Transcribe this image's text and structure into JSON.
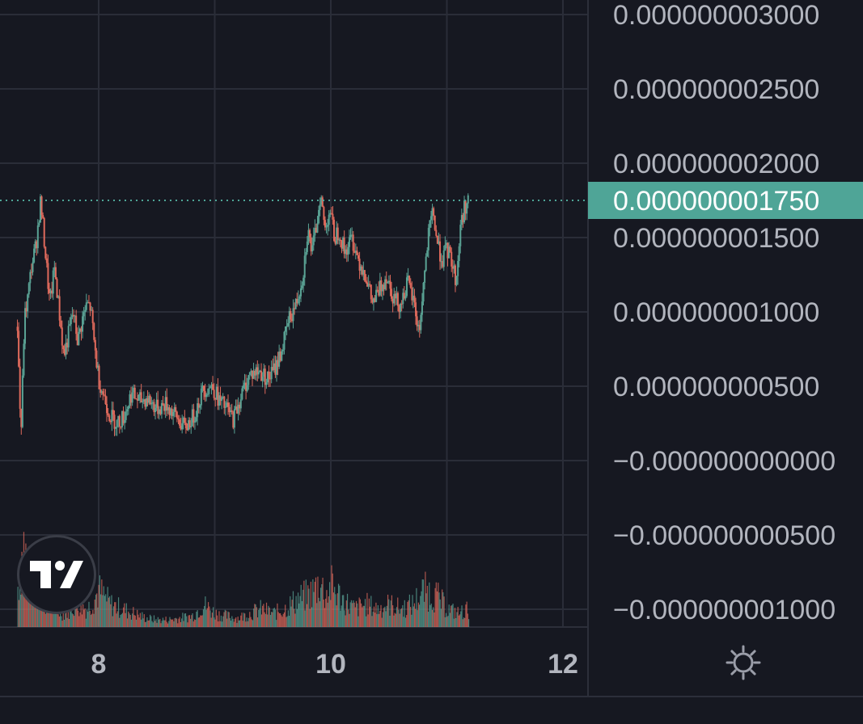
{
  "chart_data": {
    "type": "candlestick",
    "title": "",
    "x_tick_labels": [
      "8",
      "10",
      "12"
    ],
    "y_tick_labels": [
      "0.000000003000",
      "0.000000002500",
      "0.000000002000",
      "0.000000001500",
      "0.000000001000",
      "0.000000000500",
      "−0.000000000000",
      "−0.000000000500",
      "−0.000000001000"
    ],
    "y_tick_values": [
      3e-09,
      2.5e-09,
      2e-09,
      1.5e-09,
      1e-09,
      5e-10,
      0.0,
      -5e-10,
      -1e-09
    ],
    "ylim": [
      -1.05e-09,
      3.05e-09
    ],
    "xlim": [
      7.0,
      12.2
    ],
    "last_price_label": "0.000000001750",
    "last_price": 1.75e-09,
    "price_path": [
      [
        7.3,
        9e-10
      ],
      [
        7.33,
        1.5e-10
      ],
      [
        7.36,
        9.5e-10
      ],
      [
        7.39,
        1.1e-09
      ],
      [
        7.42,
        1.3e-09
      ],
      [
        7.46,
        1.45e-09
      ],
      [
        7.5,
        1.75e-09
      ],
      [
        7.54,
        1.4e-09
      ],
      [
        7.58,
        1.05e-09
      ],
      [
        7.62,
        1.3e-09
      ],
      [
        7.66,
        1e-09
      ],
      [
        7.7,
        7e-10
      ],
      [
        7.74,
        8.5e-10
      ],
      [
        7.78,
        1e-09
      ],
      [
        7.82,
        8e-10
      ],
      [
        7.86,
        9.5e-10
      ],
      [
        7.9,
        1.05e-09
      ],
      [
        7.93,
        1.03e-09
      ],
      [
        7.96,
        8e-10
      ],
      [
        8.0,
        5.5e-10
      ],
      [
        8.05,
        4.2e-10
      ],
      [
        8.1,
        3e-10
      ],
      [
        8.16,
        2.5e-10
      ],
      [
        8.22,
        3e-10
      ],
      [
        8.28,
        4.5e-10
      ],
      [
        8.35,
        4e-10
      ],
      [
        8.42,
        4.2e-10
      ],
      [
        8.5,
        3.5e-10
      ],
      [
        8.58,
        3.8e-10
      ],
      [
        8.66,
        3e-10
      ],
      [
        8.74,
        2.2e-10
      ],
      [
        8.82,
        3e-10
      ],
      [
        8.9,
        4.8e-10
      ],
      [
        8.98,
        5e-10
      ],
      [
        9.04,
        4e-10
      ],
      [
        9.1,
        3.5e-10
      ],
      [
        9.16,
        2.8e-10
      ],
      [
        9.22,
        4.2e-10
      ],
      [
        9.3,
        5.8e-10
      ],
      [
        9.38,
        6e-10
      ],
      [
        9.46,
        5.5e-10
      ],
      [
        9.52,
        6.2e-10
      ],
      [
        9.58,
        7.5e-10
      ],
      [
        9.64,
        9.5e-10
      ],
      [
        9.7,
        1.05e-09
      ],
      [
        9.76,
        1.25e-09
      ],
      [
        9.8,
        1.55e-09
      ],
      [
        9.84,
        1.4e-09
      ],
      [
        9.88,
        1.6e-09
      ],
      [
        9.91,
        1.8e-09
      ],
      [
        9.95,
        1.55e-09
      ],
      [
        9.99,
        1.7e-09
      ],
      [
        10.03,
        1.5e-09
      ],
      [
        10.07,
        1.55e-09
      ],
      [
        10.12,
        1.4e-09
      ],
      [
        10.18,
        1.5e-09
      ],
      [
        10.24,
        1.35e-09
      ],
      [
        10.3,
        1.25e-09
      ],
      [
        10.36,
        1.05e-09
      ],
      [
        10.42,
        1.15e-09
      ],
      [
        10.48,
        1.25e-09
      ],
      [
        10.54,
        1.1e-09
      ],
      [
        10.6,
        1.05e-09
      ],
      [
        10.66,
        1.2e-09
      ],
      [
        10.72,
        1.05e-09
      ],
      [
        10.76,
        8.5e-10
      ],
      [
        10.8,
        1.2e-09
      ],
      [
        10.84,
        1.5e-09
      ],
      [
        10.88,
        1.68e-09
      ],
      [
        10.92,
        1.45e-09
      ],
      [
        10.96,
        1.35e-09
      ],
      [
        11.0,
        1.42e-09
      ],
      [
        11.04,
        1.35e-09
      ],
      [
        11.08,
        1.2e-09
      ],
      [
        11.12,
        1.6e-09
      ],
      [
        11.16,
        1.72e-09
      ],
      [
        11.19,
        1.75e-09
      ]
    ],
    "volume_path": [
      [
        7.3,
        0.45
      ],
      [
        7.35,
        0.9
      ],
      [
        7.4,
        0.55
      ],
      [
        7.45,
        0.3
      ],
      [
        7.5,
        0.45
      ],
      [
        7.55,
        0.25
      ],
      [
        7.6,
        0.2
      ],
      [
        7.7,
        0.15
      ],
      [
        7.8,
        0.25
      ],
      [
        7.9,
        0.2
      ],
      [
        8.0,
        0.4
      ],
      [
        8.1,
        0.25
      ],
      [
        8.2,
        0.2
      ],
      [
        8.3,
        0.15
      ],
      [
        8.4,
        0.1
      ],
      [
        8.5,
        0.08
      ],
      [
        8.6,
        0.08
      ],
      [
        8.7,
        0.1
      ],
      [
        8.8,
        0.12
      ],
      [
        8.9,
        0.25
      ],
      [
        9.0,
        0.15
      ],
      [
        9.1,
        0.12
      ],
      [
        9.2,
        0.1
      ],
      [
        9.3,
        0.15
      ],
      [
        9.4,
        0.2
      ],
      [
        9.5,
        0.15
      ],
      [
        9.6,
        0.2
      ],
      [
        9.7,
        0.3
      ],
      [
        9.8,
        0.35
      ],
      [
        9.85,
        0.4
      ],
      [
        9.9,
        0.5
      ],
      [
        9.95,
        0.35
      ],
      [
        10.0,
        0.45
      ],
      [
        10.1,
        0.3
      ],
      [
        10.2,
        0.2
      ],
      [
        10.3,
        0.25
      ],
      [
        10.4,
        0.2
      ],
      [
        10.5,
        0.25
      ],
      [
        10.6,
        0.2
      ],
      [
        10.7,
        0.25
      ],
      [
        10.8,
        0.4
      ],
      [
        10.9,
        0.35
      ],
      [
        11.0,
        0.2
      ],
      [
        11.1,
        0.15
      ],
      [
        11.19,
        0.2
      ]
    ],
    "colors": {
      "background": "#161821",
      "up": "#5aa395",
      "down": "#e06a5c",
      "grid": "#2a2d38",
      "last_price": "#4fa597",
      "axis_text": "#b2b5be"
    }
  }
}
